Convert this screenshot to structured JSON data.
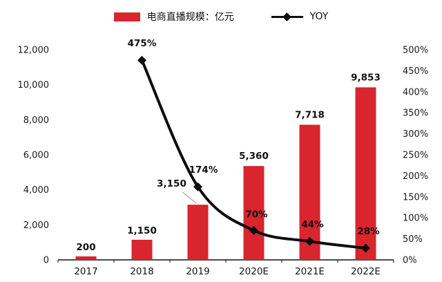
{
  "chart_data": {
    "type": "bar+line",
    "title": "",
    "categories": [
      "2017",
      "2018",
      "2019",
      "2020E",
      "2021E",
      "2022E"
    ],
    "series": [
      {
        "name": "电商直播规模：亿元",
        "type": "bar",
        "axis": "left",
        "color": "#d9252d",
        "values": [
          200,
          1150,
          3150,
          5360,
          7718,
          9853
        ],
        "labels": [
          "200",
          "1,150",
          "3,150",
          "5,360",
          "7,718",
          "9,853"
        ]
      },
      {
        "name": "YOY",
        "type": "line",
        "axis": "right",
        "color": "#0d0d0d",
        "values": [
          null,
          4.75,
          1.74,
          0.7,
          0.44,
          0.28
        ],
        "labels": [
          "",
          "475%",
          "174%",
          "70%",
          "44%",
          "28%"
        ]
      }
    ],
    "left_axis": {
      "min": 0,
      "max": 12000,
      "step": 2000,
      "tick_labels": [
        "0",
        "2,000",
        "4,000",
        "6,000",
        "8,000",
        "10,000",
        "12,000"
      ]
    },
    "right_axis": {
      "min": 0,
      "max": 5,
      "step": 0.5,
      "tick_labels": [
        "0%",
        "50%",
        "100%",
        "150%",
        "200%",
        "250%",
        "300%",
        "350%",
        "400%",
        "450%",
        "500%"
      ]
    },
    "legend": [
      {
        "label": "电商直播规模：亿元",
        "swatch": "bar",
        "color": "#d9252d"
      },
      {
        "label": "YOY",
        "swatch": "line-diamond",
        "color": "#0d0d0d"
      }
    ],
    "grid": false,
    "legend_position": "top-center"
  }
}
